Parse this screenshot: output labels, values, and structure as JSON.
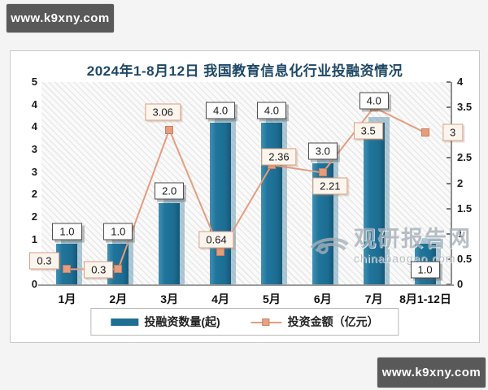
{
  "badges": {
    "top_left": "www.k9xny.com",
    "bottom_right": "www.k9xny.com"
  },
  "chart_data": {
    "type": "bar",
    "subtype": "combo-bar-line-dual-axis",
    "title": "2024年1-8月12日 我国教育信息化行业投融资情况",
    "categories": [
      "1月",
      "2月",
      "3月",
      "4月",
      "5月",
      "6月",
      "7月",
      "8月1-12日"
    ],
    "series": [
      {
        "name": "投融资数量(起)",
        "type": "bar",
        "axis": "left",
        "color": "#1e6f94",
        "values": [
          1.0,
          1.0,
          2.0,
          4.0,
          4.0,
          3.0,
          4.0,
          1.0
        ],
        "labels": [
          "1.0",
          "1.0",
          "2.0",
          "4.0",
          "4.0",
          "3.0",
          "4.0",
          "1.0"
        ]
      },
      {
        "name": "投资金额（亿元）",
        "type": "line",
        "axis": "right",
        "color": "#e59d7f",
        "values": [
          0.3,
          0.3,
          3.06,
          0.64,
          2.36,
          2.21,
          3.5,
          3
        ],
        "labels": [
          "0.3",
          "0.3",
          "3.06",
          "0.64",
          "2.36",
          "2.21",
          "3.5",
          "3"
        ]
      }
    ],
    "left_axis": {
      "range": [
        0,
        5
      ],
      "tick_labels_top_to_bottom": [
        "5",
        "4",
        "4",
        "3",
        "3",
        "2",
        "2",
        "1",
        "1",
        "0"
      ]
    },
    "right_axis": {
      "range": [
        0,
        4
      ],
      "tick_labels_top_to_bottom": [
        "4",
        "3.5",
        "3",
        "2.5",
        "2",
        "1.5",
        "1",
        "0.5",
        "0"
      ]
    },
    "legend_position": "bottom",
    "grid": false,
    "plot_background": "diagonal-hatch"
  },
  "watermark": {
    "name": "观研报告网",
    "domain": "chinabaogao.com",
    "icon": "eye-swirl-logo"
  },
  "colors": {
    "bar": "#1e6f94",
    "line": "#e59d7f",
    "title": "#1e4866",
    "badge_background": "#595959"
  }
}
